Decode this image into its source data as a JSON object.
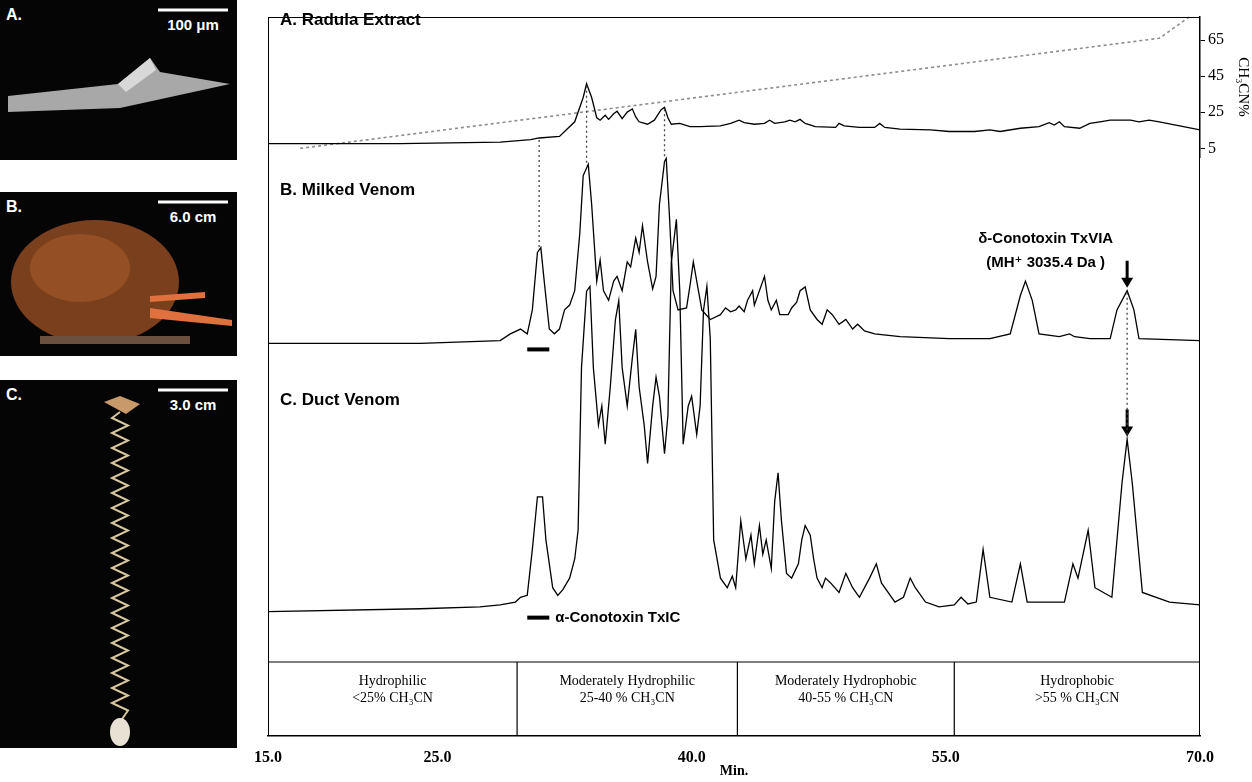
{
  "figure_panels": [
    {
      "label": "A.",
      "scale_bar": "100 μm"
    },
    {
      "label": "B.",
      "scale_bar": "6.0 cm"
    },
    {
      "label": "C.",
      "scale_bar": "3.0 cm"
    }
  ],
  "chart_data": [
    {
      "type": "line",
      "title": "A. Radula Extract",
      "xlim": [
        15,
        70
      ],
      "ylim": [
        0,
        174
      ],
      "y2lim": [
        0,
        78
      ],
      "y2ticks": [
        5,
        25,
        45,
        65
      ],
      "y2label": "CH₃CN%",
      "tick_labels": false,
      "grid": false,
      "series": [
        {
          "color": "#000000",
          "x": [
            15.0,
            22.8,
            28.7,
            30.5,
            31.0,
            32.2,
            33.1,
            33.6,
            33.8,
            34.1,
            34.4,
            34.6,
            34.9,
            35.1,
            35.4,
            35.6,
            35.9,
            36.2,
            36.5,
            36.7,
            36.9,
            37.4,
            37.8,
            38.2,
            38.4,
            38.6,
            38.8,
            39.3,
            39.9,
            40.5,
            41.7,
            42.3,
            42.8,
            43.1,
            43.7,
            44.3,
            44.6,
            44.9,
            45.5,
            45.8,
            46.1,
            46.4,
            46.7,
            47.3,
            48.5,
            48.7,
            49.0,
            49.9,
            50.8,
            51.1,
            51.4,
            52.3,
            54.1,
            55.2,
            56.7,
            57.6,
            58.2,
            59.4,
            60.5,
            61.1,
            61.4,
            61.7,
            62.0,
            62.9,
            63.5,
            64.1,
            64.7,
            65.3,
            65.9,
            66.4,
            67.0,
            67.6,
            68.8,
            70.0
          ],
          "values": [
            17,
            17,
            19,
            22,
            24,
            26,
            44,
            74,
            91,
            74,
            49,
            46,
            52,
            47,
            54,
            57,
            48,
            56,
            60,
            50,
            44,
            41,
            46,
            59,
            62,
            49,
            41,
            42,
            38,
            38,
            39,
            42,
            46,
            43,
            41,
            42,
            46,
            42,
            44,
            46,
            44,
            47,
            42,
            38,
            37,
            42,
            39,
            37,
            37,
            42,
            37,
            35,
            34,
            32,
            32,
            34,
            32,
            36,
            38,
            43,
            40,
            44,
            38,
            36,
            42,
            44,
            46,
            46,
            46,
            44,
            46,
            44,
            39,
            34
          ]
        },
        {
          "color": "#8c8c8c",
          "line_style": "dotted",
          "axis": "y2",
          "x": [
            16.9,
            67.6,
            69.4
          ],
          "values": [
            5,
            66,
            78
          ]
        }
      ],
      "links_down": [
        31.0,
        33.8,
        38.4
      ]
    },
    {
      "type": "line",
      "title": "B. Milked Venom",
      "xlim": [
        15,
        70
      ],
      "ylim": [
        0,
        215
      ],
      "tick_labels": false,
      "grid": false,
      "series": [
        {
          "color": "#000000",
          "x": [
            15.0,
            24.0,
            28.7,
            29.3,
            29.9,
            30.3,
            30.6,
            30.9,
            31.1,
            31.3,
            31.6,
            31.9,
            32.2,
            32.5,
            32.8,
            33.1,
            33.4,
            33.6,
            33.9,
            34.1,
            34.4,
            34.6,
            34.8,
            35.1,
            35.4,
            35.6,
            35.9,
            36.2,
            36.4,
            36.7,
            36.9,
            37.1,
            37.4,
            37.7,
            37.9,
            38.1,
            38.4,
            38.5,
            38.7,
            38.9,
            39.2,
            39.7,
            39.9,
            40.1,
            40.4,
            40.6,
            41.1,
            41.7,
            42.0,
            42.3,
            42.6,
            42.8,
            43.1,
            43.3,
            43.6,
            43.7,
            44.0,
            44.3,
            44.5,
            44.7,
            45.0,
            45.2,
            45.7,
            45.9,
            46.2,
            46.4,
            46.7,
            47.0,
            47.4,
            47.7,
            48.0,
            48.3,
            48.7,
            49.1,
            49.5,
            49.8,
            50.2,
            50.8,
            52.3,
            55.2,
            57.6,
            58.8,
            59.4,
            59.7,
            60.1,
            60.5,
            61.7,
            62.3,
            62.6,
            63.5,
            64.7,
            65.1,
            65.7,
            66.1,
            66.4,
            70.0
          ],
          "values": [
            10,
            10,
            13,
            20,
            25,
            20,
            45,
            105,
            110,
            75,
            25,
            20,
            25,
            45,
            50,
            65,
            125,
            185,
            197,
            155,
            75,
            97,
            65,
            55,
            75,
            80,
            65,
            95,
            90,
            120,
            105,
            133,
            95,
            67,
            80,
            155,
            200,
            203,
            140,
            65,
            45,
            47,
            70,
            95,
            65,
            45,
            35,
            40,
            47,
            43,
            45,
            49,
            43,
            55,
            65,
            50,
            65,
            80,
            55,
            45,
            55,
            40,
            40,
            47,
            53,
            65,
            69,
            45,
            35,
            30,
            45,
            40,
            30,
            35,
            25,
            30,
            23,
            20,
            17,
            15,
            15,
            20,
            60,
            75,
            55,
            20,
            17,
            20,
            17,
            15,
            15,
            45,
            65,
            45,
            15,
            13
          ]
        }
      ],
      "annotations": [
        {
          "shape": "bar",
          "x": [
            30.3,
            31.6
          ]
        },
        {
          "shape": "arrow",
          "x": 65.7,
          "text": [
            "δ-Conotoxin TxVIA",
            "(MH⁺ 3035.4 Da )"
          ]
        }
      ],
      "links_down": [
        65.7
      ]
    },
    {
      "type": "line",
      "title": "C. Duct Venom",
      "xlim": [
        15,
        70
      ],
      "ylim": [
        0,
        555
      ],
      "xticks": [
        {
          "value": 15,
          "label": "15.0"
        },
        {
          "value": 25,
          "label": "25.0"
        },
        {
          "value": 40,
          "label": "40.0"
        },
        {
          "value": 55,
          "label": "55.0"
        },
        {
          "value": 70,
          "label": "70.0"
        }
      ],
      "xlabel": "Min.",
      "tick_labels": "x",
      "grid": false,
      "series": [
        {
          "color": "#000000",
          "x": [
            15.0,
            24.0,
            27.5,
            28.7,
            29.6,
            29.9,
            30.3,
            30.6,
            30.9,
            31.2,
            31.4,
            31.8,
            32.1,
            32.4,
            32.8,
            33.1,
            33.3,
            33.5,
            33.8,
            34.0,
            34.2,
            34.5,
            34.7,
            34.9,
            35.2,
            35.5,
            35.7,
            35.9,
            36.2,
            36.5,
            36.7,
            36.9,
            37.2,
            37.4,
            37.7,
            37.9,
            38.1,
            38.4,
            38.6,
            38.8,
            39.1,
            39.3,
            39.5,
            39.8,
            40.0,
            40.3,
            40.5,
            40.7,
            40.9,
            41.1,
            41.3,
            41.7,
            42.1,
            42.4,
            42.6,
            42.9,
            43.2,
            43.5,
            43.7,
            44.0,
            44.2,
            44.4,
            44.7,
            44.9,
            45.1,
            45.3,
            45.6,
            45.9,
            46.3,
            46.5,
            46.7,
            47.0,
            47.2,
            47.4,
            47.7,
            47.9,
            48.2,
            48.7,
            49.1,
            49.5,
            49.9,
            50.5,
            50.9,
            51.2,
            52.0,
            52.5,
            52.9,
            53.2,
            53.8,
            54.6,
            55.5,
            55.9,
            56.3,
            56.8,
            57.2,
            57.6,
            58.9,
            59.4,
            59.8,
            62.0,
            62.5,
            62.8,
            63.4,
            63.8,
            64.8,
            65.4,
            65.7,
            66.0,
            66.6,
            68.2,
            70.0
          ],
          "values": [
            130,
            133,
            135,
            137,
            140,
            145,
            147,
            195,
            250,
            250,
            205,
            155,
            147,
            153,
            165,
            185,
            215,
            385,
            465,
            470,
            385,
            325,
            345,
            305,
            365,
            435,
            455,
            385,
            345,
            395,
            425,
            365,
            325,
            285,
            345,
            375,
            355,
            295,
            335,
            495,
            540,
            465,
            305,
            345,
            355,
            315,
            345,
            445,
            470,
            415,
            205,
            165,
            155,
            167,
            155,
            225,
            185,
            210,
            180,
            220,
            190,
            205,
            175,
            245,
            275,
            225,
            170,
            165,
            180,
            205,
            220,
            210,
            185,
            165,
            155,
            165,
            160,
            150,
            170,
            155,
            145,
            165,
            180,
            160,
            140,
            145,
            165,
            155,
            140,
            135,
            137,
            145,
            138,
            140,
            195,
            145,
            140,
            180,
            140,
            140,
            180,
            165,
            215,
            155,
            145,
            265,
            310,
            265,
            150,
            140,
            137
          ]
        }
      ],
      "annotations": [
        {
          "shape": "bar",
          "x": [
            30.3,
            31.6
          ],
          "text": [
            "α-Conotoxin TxIC"
          ]
        },
        {
          "shape": "arrow",
          "x": 65.7
        }
      ],
      "regions": [
        {
          "x": [
            15,
            29.7
          ],
          "text": [
            "Hydrophilic",
            "<25% CH₃CN"
          ]
        },
        {
          "x": [
            29.7,
            42.7
          ],
          "text": [
            "Moderately Hydrophilic",
            "25-40 % CH₃CN"
          ]
        },
        {
          "x": [
            42.7,
            55.5
          ],
          "text": [
            "Moderately Hydrophobic",
            "40-55 % CH₃CN"
          ]
        },
        {
          "x": [
            55.5,
            70
          ],
          "text": [
            "Hydrophobic",
            ">55 % CH₃CN"
          ]
        }
      ]
    }
  ]
}
